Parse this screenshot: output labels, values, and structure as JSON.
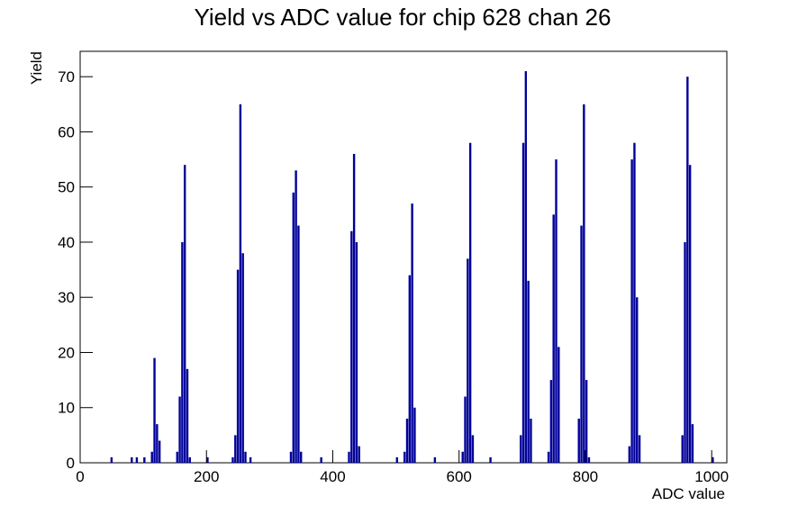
{
  "chart_data": {
    "type": "histogram",
    "title": "Yield vs ADC value for chip 628 chan 26",
    "x_label": "ADC value",
    "y_label": "Yield",
    "color": "#000099",
    "xlim": [
      0,
      1024
    ],
    "ylim": [
      0,
      74.6
    ],
    "xticks": [
      0,
      200,
      400,
      600,
      800,
      1000
    ],
    "yticks": [
      0,
      10,
      20,
      30,
      40,
      50,
      60,
      70
    ],
    "bins": [
      0,
      4,
      8,
      12,
      16,
      20,
      24,
      28,
      32,
      36,
      40,
      44,
      48,
      52,
      56,
      60,
      64,
      68,
      72,
      76,
      80,
      84,
      88,
      92,
      96,
      100,
      104,
      108,
      112,
      116,
      120,
      124,
      128,
      132,
      136,
      140,
      144,
      148,
      152,
      156,
      160,
      164,
      168,
      172,
      176,
      180,
      184,
      188,
      192,
      196,
      200,
      204,
      208,
      212,
      216,
      220,
      224,
      228,
      232,
      236,
      240,
      244,
      248,
      252,
      256,
      260,
      264,
      268,
      272,
      276,
      280,
      284,
      288,
      292,
      296,
      300,
      304,
      308,
      312,
      316,
      320,
      324,
      328,
      332,
      336,
      340,
      344,
      348,
      352,
      356,
      360,
      364,
      368,
      372,
      376,
      380,
      384,
      388,
      392,
      396,
      400,
      404,
      408,
      412,
      416,
      420,
      424,
      428,
      432,
      436,
      440,
      444,
      448,
      452,
      456,
      460,
      464,
      468,
      472,
      476,
      480,
      484,
      488,
      492,
      496,
      500,
      504,
      508,
      512,
      516,
      520,
      524,
      528,
      532,
      536,
      540,
      544,
      548,
      552,
      556,
      560,
      564,
      568,
      572,
      576,
      580,
      584,
      588,
      592,
      596,
      600,
      604,
      608,
      612,
      616,
      620,
      624,
      628,
      632,
      636,
      640,
      644,
      648,
      652,
      656,
      660,
      664,
      668,
      672,
      676,
      680,
      684,
      688,
      692,
      696,
      700,
      704,
      708,
      712,
      716,
      720,
      724,
      728,
      732,
      736,
      740,
      744,
      748,
      752,
      756,
      760,
      764,
      768,
      772,
      776,
      780,
      784,
      788,
      792,
      796,
      800,
      804,
      808,
      812,
      816,
      820,
      824,
      828,
      832,
      836,
      840,
      844,
      848,
      852,
      856,
      860,
      864,
      868,
      872,
      876,
      880,
      884,
      888,
      892,
      896,
      900,
      904,
      908,
      912,
      916,
      920,
      924,
      928,
      932,
      936,
      940,
      944,
      948,
      952,
      956,
      960,
      964,
      968,
      972,
      976,
      980,
      984,
      988,
      992,
      996,
      1000,
      1004,
      1008,
      1012,
      1016,
      1020,
      1024
    ],
    "values": [
      0,
      0,
      0,
      0,
      0,
      0,
      0,
      0,
      0,
      0,
      0,
      0,
      1,
      0,
      0,
      0,
      0,
      0,
      0,
      0,
      1,
      0,
      1,
      0,
      0,
      1,
      0,
      0,
      2,
      19,
      7,
      4,
      0,
      0,
      0,
      0,
      0,
      0,
      2,
      12,
      40,
      54,
      17,
      1,
      0,
      0,
      0,
      0,
      0,
      0,
      1,
      0,
      0,
      0,
      0,
      0,
      0,
      0,
      0,
      0,
      1,
      5,
      35,
      65,
      38,
      2,
      0,
      1,
      0,
      0,
      0,
      0,
      0,
      0,
      0,
      0,
      0,
      0,
      0,
      0,
      0,
      0,
      0,
      2,
      49,
      53,
      43,
      2,
      0,
      0,
      0,
      0,
      0,
      0,
      0,
      1,
      0,
      0,
      0,
      0,
      0,
      0,
      0,
      0,
      0,
      0,
      2,
      42,
      56,
      40,
      3,
      0,
      0,
      0,
      0,
      0,
      0,
      0,
      0,
      0,
      0,
      0,
      0,
      0,
      0,
      1,
      0,
      0,
      2,
      8,
      34,
      47,
      10,
      0,
      0,
      0,
      0,
      0,
      0,
      0,
      1,
      0,
      0,
      0,
      0,
      0,
      0,
      0,
      0,
      0,
      0,
      2,
      12,
      37,
      58,
      5,
      0,
      0,
      0,
      0,
      0,
      0,
      1,
      0,
      0,
      0,
      0,
      0,
      0,
      0,
      0,
      0,
      0,
      0,
      5,
      58,
      71,
      33,
      8,
      0,
      0,
      0,
      0,
      0,
      0,
      2,
      15,
      45,
      55,
      21,
      0,
      0,
      0,
      0,
      0,
      0,
      0,
      8,
      43,
      65,
      15,
      1,
      0,
      0,
      0,
      0,
      0,
      0,
      0,
      0,
      0,
      0,
      0,
      0,
      0,
      0,
      0,
      3,
      55,
      58,
      30,
      5,
      0,
      0,
      0,
      0,
      0,
      0,
      0,
      0,
      0,
      0,
      0,
      0,
      0,
      0,
      0,
      0,
      5,
      40,
      70,
      54,
      7,
      0,
      0,
      0,
      0,
      0,
      0,
      0,
      1,
      0,
      0,
      0,
      0,
      0
    ]
  }
}
